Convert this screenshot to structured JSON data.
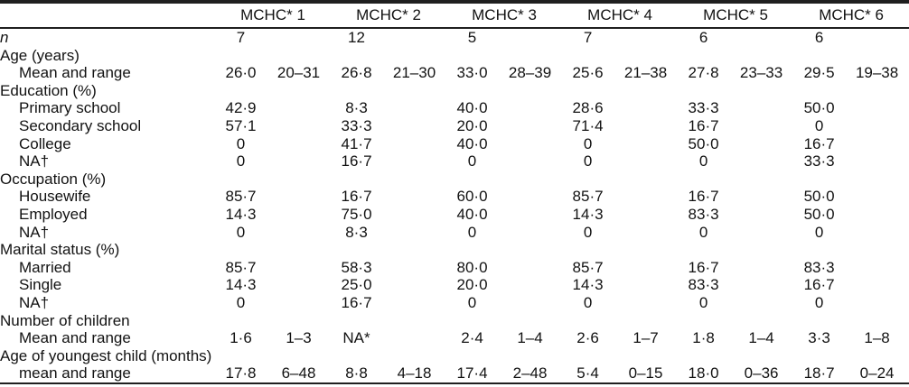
{
  "table": {
    "column_groups": [
      {
        "label": "MCHC* 1"
      },
      {
        "label": "MCHC* 2"
      },
      {
        "label": "MCHC* 3"
      },
      {
        "label": "MCHC* 4"
      },
      {
        "label": "MCHC* 5"
      },
      {
        "label": "MCHC* 6"
      }
    ],
    "subcolumns_per_group": [
      "value",
      "range"
    ],
    "rows": [
      {
        "label": "n",
        "italic": true,
        "indent": 0,
        "cells": [
          "7",
          "",
          "12",
          "",
          "5",
          "",
          "7",
          "",
          "6",
          "",
          "6",
          ""
        ]
      },
      {
        "label": "Age (years)",
        "indent": 0,
        "cells": [
          "",
          "",
          "",
          "",
          "",
          "",
          "",
          "",
          "",
          "",
          "",
          ""
        ]
      },
      {
        "label": "Mean and range",
        "indent": 1,
        "cells": [
          "26·0",
          "20–31",
          "26·8",
          "21–30",
          "33·0",
          "28–39",
          "25·6",
          "21–38",
          "27·8",
          "23–33",
          "29·5",
          "19–38"
        ]
      },
      {
        "label": "Education (%)",
        "indent": 0,
        "cells": [
          "",
          "",
          "",
          "",
          "",
          "",
          "",
          "",
          "",
          "",
          "",
          ""
        ]
      },
      {
        "label": "Primary school",
        "indent": 1,
        "cells": [
          "42·9",
          "",
          "8·3",
          "",
          "40·0",
          "",
          "28·6",
          "",
          "33·3",
          "",
          "50·0",
          ""
        ]
      },
      {
        "label": "Secondary school",
        "indent": 1,
        "cells": [
          "57·1",
          "",
          "33·3",
          "",
          "20·0",
          "",
          "71·4",
          "",
          "16·7",
          "",
          "0",
          ""
        ]
      },
      {
        "label": "College",
        "indent": 1,
        "cells": [
          "0",
          "",
          "41·7",
          "",
          "40·0",
          "",
          "0",
          "",
          "50·0",
          "",
          "16·7",
          ""
        ]
      },
      {
        "label": "NA†",
        "indent": 1,
        "cells": [
          "0",
          "",
          "16·7",
          "",
          "0",
          "",
          "0",
          "",
          "0",
          "",
          "33·3",
          ""
        ]
      },
      {
        "label": "Occupation (%)",
        "indent": 0,
        "cells": [
          "",
          "",
          "",
          "",
          "",
          "",
          "",
          "",
          "",
          "",
          "",
          ""
        ]
      },
      {
        "label": "Housewife",
        "indent": 1,
        "cells": [
          "85·7",
          "",
          "16·7",
          "",
          "60·0",
          "",
          "85·7",
          "",
          "16·7",
          "",
          "50·0",
          ""
        ]
      },
      {
        "label": "Employed",
        "indent": 1,
        "cells": [
          "14·3",
          "",
          "75·0",
          "",
          "40·0",
          "",
          "14·3",
          "",
          "83·3",
          "",
          "50·0",
          ""
        ]
      },
      {
        "label": "NA†",
        "indent": 1,
        "cells": [
          "0",
          "",
          "8·3",
          "",
          "0",
          "",
          "0",
          "",
          "0",
          "",
          "0",
          ""
        ]
      },
      {
        "label": "Marital status (%)",
        "indent": 0,
        "cells": [
          "",
          "",
          "",
          "",
          "",
          "",
          "",
          "",
          "",
          "",
          "",
          ""
        ]
      },
      {
        "label": "Married",
        "indent": 1,
        "cells": [
          "85·7",
          "",
          "58·3",
          "",
          "80·0",
          "",
          "85·7",
          "",
          "16·7",
          "",
          "83·3",
          ""
        ]
      },
      {
        "label": "Single",
        "indent": 1,
        "cells": [
          "14·3",
          "",
          "25·0",
          "",
          "20·0",
          "",
          "14·3",
          "",
          "83·3",
          "",
          "16·7",
          ""
        ]
      },
      {
        "label": "NA†",
        "indent": 1,
        "cells": [
          "0",
          "",
          "16·7",
          "",
          "0",
          "",
          "0",
          "",
          "0",
          "",
          "0",
          ""
        ]
      },
      {
        "label": "Number of children",
        "indent": 0,
        "cells": [
          "",
          "",
          "",
          "",
          "",
          "",
          "",
          "",
          "",
          "",
          "",
          ""
        ]
      },
      {
        "label": "Mean and range",
        "indent": 1,
        "cells": [
          "1·6",
          "1–3",
          "NA*",
          "",
          "2·4",
          "1–4",
          "2·6",
          "1–7",
          "1·8",
          "1–4",
          "3·3",
          "1–8"
        ]
      },
      {
        "label": "Age of youngest child (months)",
        "indent": 0,
        "cells": [
          "",
          "",
          "",
          "",
          "",
          "",
          "",
          "",
          "",
          "",
          "",
          ""
        ]
      },
      {
        "label": "mean and range",
        "indent": 1,
        "cells": [
          "17·8",
          "6–48",
          "8·8",
          "4–18",
          "17·4",
          "2–48",
          "5·4",
          "0–15",
          "18·0",
          "0–36",
          "18·7",
          "0–24"
        ]
      }
    ]
  },
  "colors": {
    "text": "#121212",
    "rule": "#1f1f1f",
    "background": "#ffffff"
  }
}
